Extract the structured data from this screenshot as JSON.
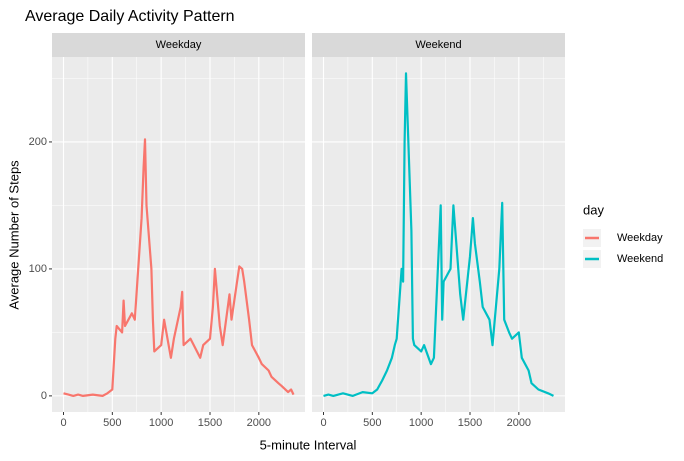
{
  "chart_data": {
    "type": "line",
    "title": "Average Daily Activity Pattern",
    "x_label": "5-minute Interval",
    "y_label": "Average Number of Steps",
    "legend_title": "day",
    "xlim": [
      -117.75,
      2472.75
    ],
    "xticks": [
      0,
      500,
      1000,
      1500,
      2000
    ],
    "ylim": [
      -12.7,
      266.9
    ],
    "yticks": [
      0,
      100,
      200
    ],
    "grid": true,
    "minor_grid": true,
    "legend": "right",
    "series": [
      {
        "name": "Weekday",
        "color": "#f8766d",
        "x": [
          0,
          50,
          100,
          150,
          200,
          300,
          400,
          450,
          500,
          530,
          545,
          600,
          615,
          630,
          700,
          730,
          800,
          820,
          835,
          850,
          900,
          915,
          930,
          1000,
          1030,
          1100,
          1130,
          1200,
          1215,
          1230,
          1300,
          1400,
          1430,
          1500,
          1530,
          1550,
          1600,
          1630,
          1700,
          1720,
          1800,
          1830,
          1850,
          1900,
          1930,
          2000,
          2030,
          2100,
          2130,
          2200,
          2230,
          2300,
          2330,
          2355
        ],
        "values": [
          2,
          1,
          0,
          1,
          0,
          1,
          0,
          2,
          5,
          45,
          55,
          50,
          75,
          55,
          65,
          60,
          140,
          180,
          202,
          150,
          100,
          60,
          35,
          40,
          60,
          30,
          45,
          70,
          82,
          40,
          45,
          30,
          40,
          45,
          70,
          100,
          55,
          40,
          80,
          60,
          102,
          100,
          90,
          60,
          40,
          30,
          25,
          20,
          15,
          10,
          8,
          3,
          5,
          1
        ]
      },
      {
        "name": "Weekend",
        "color": "#00bfc4",
        "x": [
          0,
          50,
          100,
          200,
          300,
          400,
          500,
          550,
          600,
          650,
          700,
          730,
          750,
          800,
          815,
          830,
          845,
          900,
          915,
          930,
          1000,
          1030,
          1100,
          1130,
          1200,
          1215,
          1230,
          1300,
          1330,
          1400,
          1430,
          1500,
          1530,
          1550,
          1600,
          1630,
          1700,
          1730,
          1800,
          1830,
          1850,
          1900,
          1930,
          2000,
          2030,
          2100,
          2130,
          2200,
          2300,
          2355
        ],
        "values": [
          0,
          1,
          0,
          2,
          0,
          3,
          2,
          5,
          12,
          20,
          30,
          40,
          45,
          100,
          90,
          200,
          254,
          130,
          45,
          40,
          35,
          40,
          25,
          30,
          150,
          60,
          90,
          100,
          150,
          80,
          60,
          110,
          140,
          120,
          90,
          70,
          60,
          40,
          100,
          152,
          60,
          50,
          45,
          50,
          30,
          20,
          10,
          5,
          2,
          0
        ]
      }
    ]
  }
}
